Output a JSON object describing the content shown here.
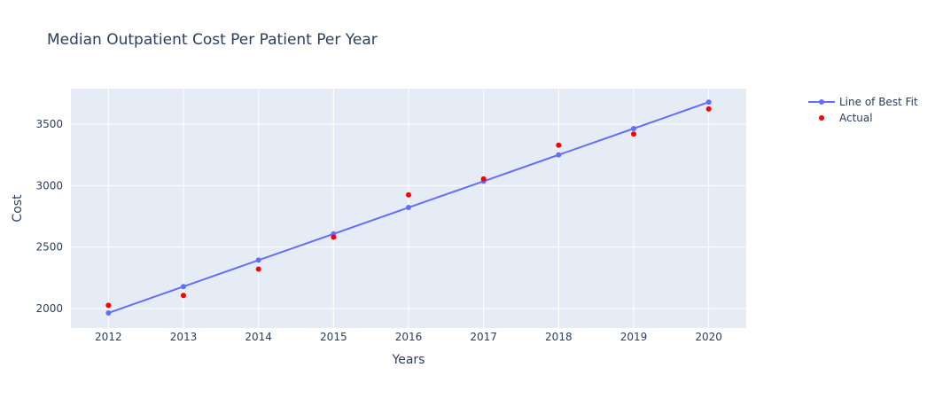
{
  "chart_data": {
    "type": "line",
    "title": "Median Outpatient Cost Per Patient Per Year",
    "xlabel": "Years",
    "ylabel": "Cost",
    "x": [
      2012,
      2013,
      2014,
      2015,
      2016,
      2017,
      2018,
      2019,
      2020
    ],
    "xlim": [
      2011.5,
      2020.5
    ],
    "ylim": [
      1840,
      3790
    ],
    "yticks": [
      2000,
      2500,
      3000,
      3500
    ],
    "grid": true,
    "legend_placement": "top-right",
    "series": [
      {
        "name": "Line of Best Fit",
        "mode": "lines+markers",
        "color": "#636efa",
        "values": [
          1963,
          2178,
          2393,
          2607,
          2822,
          3036,
          3251,
          3465,
          3680
        ]
      },
      {
        "name": "Actual",
        "mode": "markers",
        "color": "#ff0000",
        "values": [
          2025,
          2105,
          2320,
          2580,
          2925,
          3055,
          3330,
          3420,
          3625
        ]
      }
    ]
  },
  "colors": {
    "plot_background": "#e5ecf6",
    "gridline": "#ffffff",
    "text": "#2a3f5f"
  }
}
